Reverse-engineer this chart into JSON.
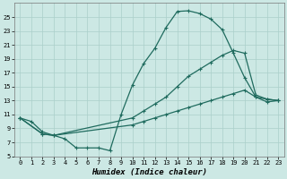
{
  "xlabel": "Humidex (Indice chaleur)",
  "bg_color": "#cce8e4",
  "grid_color": "#aacfca",
  "line_color": "#1f6b5e",
  "xlim": [
    -0.5,
    23.5
  ],
  "ylim": [
    5,
    27
  ],
  "xticks": [
    0,
    1,
    2,
    3,
    4,
    5,
    6,
    7,
    8,
    9,
    10,
    11,
    12,
    13,
    14,
    15,
    16,
    17,
    18,
    19,
    20,
    21,
    22,
    23
  ],
  "yticks": [
    5,
    7,
    9,
    11,
    13,
    15,
    17,
    19,
    21,
    23,
    25
  ],
  "curve1_x": [
    0,
    1,
    2,
    3,
    4,
    5,
    6,
    7,
    8,
    9,
    10,
    11,
    12,
    13,
    14,
    15,
    16,
    17,
    18,
    19,
    20,
    21,
    22,
    23
  ],
  "curve1_y": [
    10.5,
    10.0,
    8.5,
    8.0,
    7.5,
    6.2,
    6.2,
    6.2,
    5.8,
    11.0,
    15.2,
    18.3,
    20.5,
    23.5,
    25.8,
    25.9,
    25.5,
    24.7,
    23.2,
    19.8,
    16.3,
    13.5,
    12.8,
    13.0
  ],
  "curve2_x": [
    0,
    2,
    3,
    10,
    11,
    12,
    13,
    14,
    15,
    16,
    17,
    18,
    19,
    20,
    21,
    22,
    23
  ],
  "curve2_y": [
    10.5,
    8.2,
    8.0,
    10.5,
    11.5,
    12.5,
    13.5,
    15.0,
    16.5,
    17.5,
    18.5,
    19.5,
    20.2,
    19.8,
    13.8,
    13.2,
    13.0
  ],
  "curve3_x": [
    0,
    2,
    3,
    10,
    11,
    12,
    13,
    14,
    15,
    16,
    17,
    18,
    19,
    20,
    21,
    22,
    23
  ],
  "curve3_y": [
    10.5,
    8.2,
    8.0,
    9.5,
    10.0,
    10.5,
    11.0,
    11.5,
    12.0,
    12.5,
    13.0,
    13.5,
    14.0,
    14.5,
    13.5,
    13.2,
    13.0
  ],
  "marker": "+",
  "marker_size": 3,
  "marker_lw": 0.8,
  "linewidth": 0.9,
  "tick_fontsize": 5.0,
  "label_fontsize": 6.5
}
